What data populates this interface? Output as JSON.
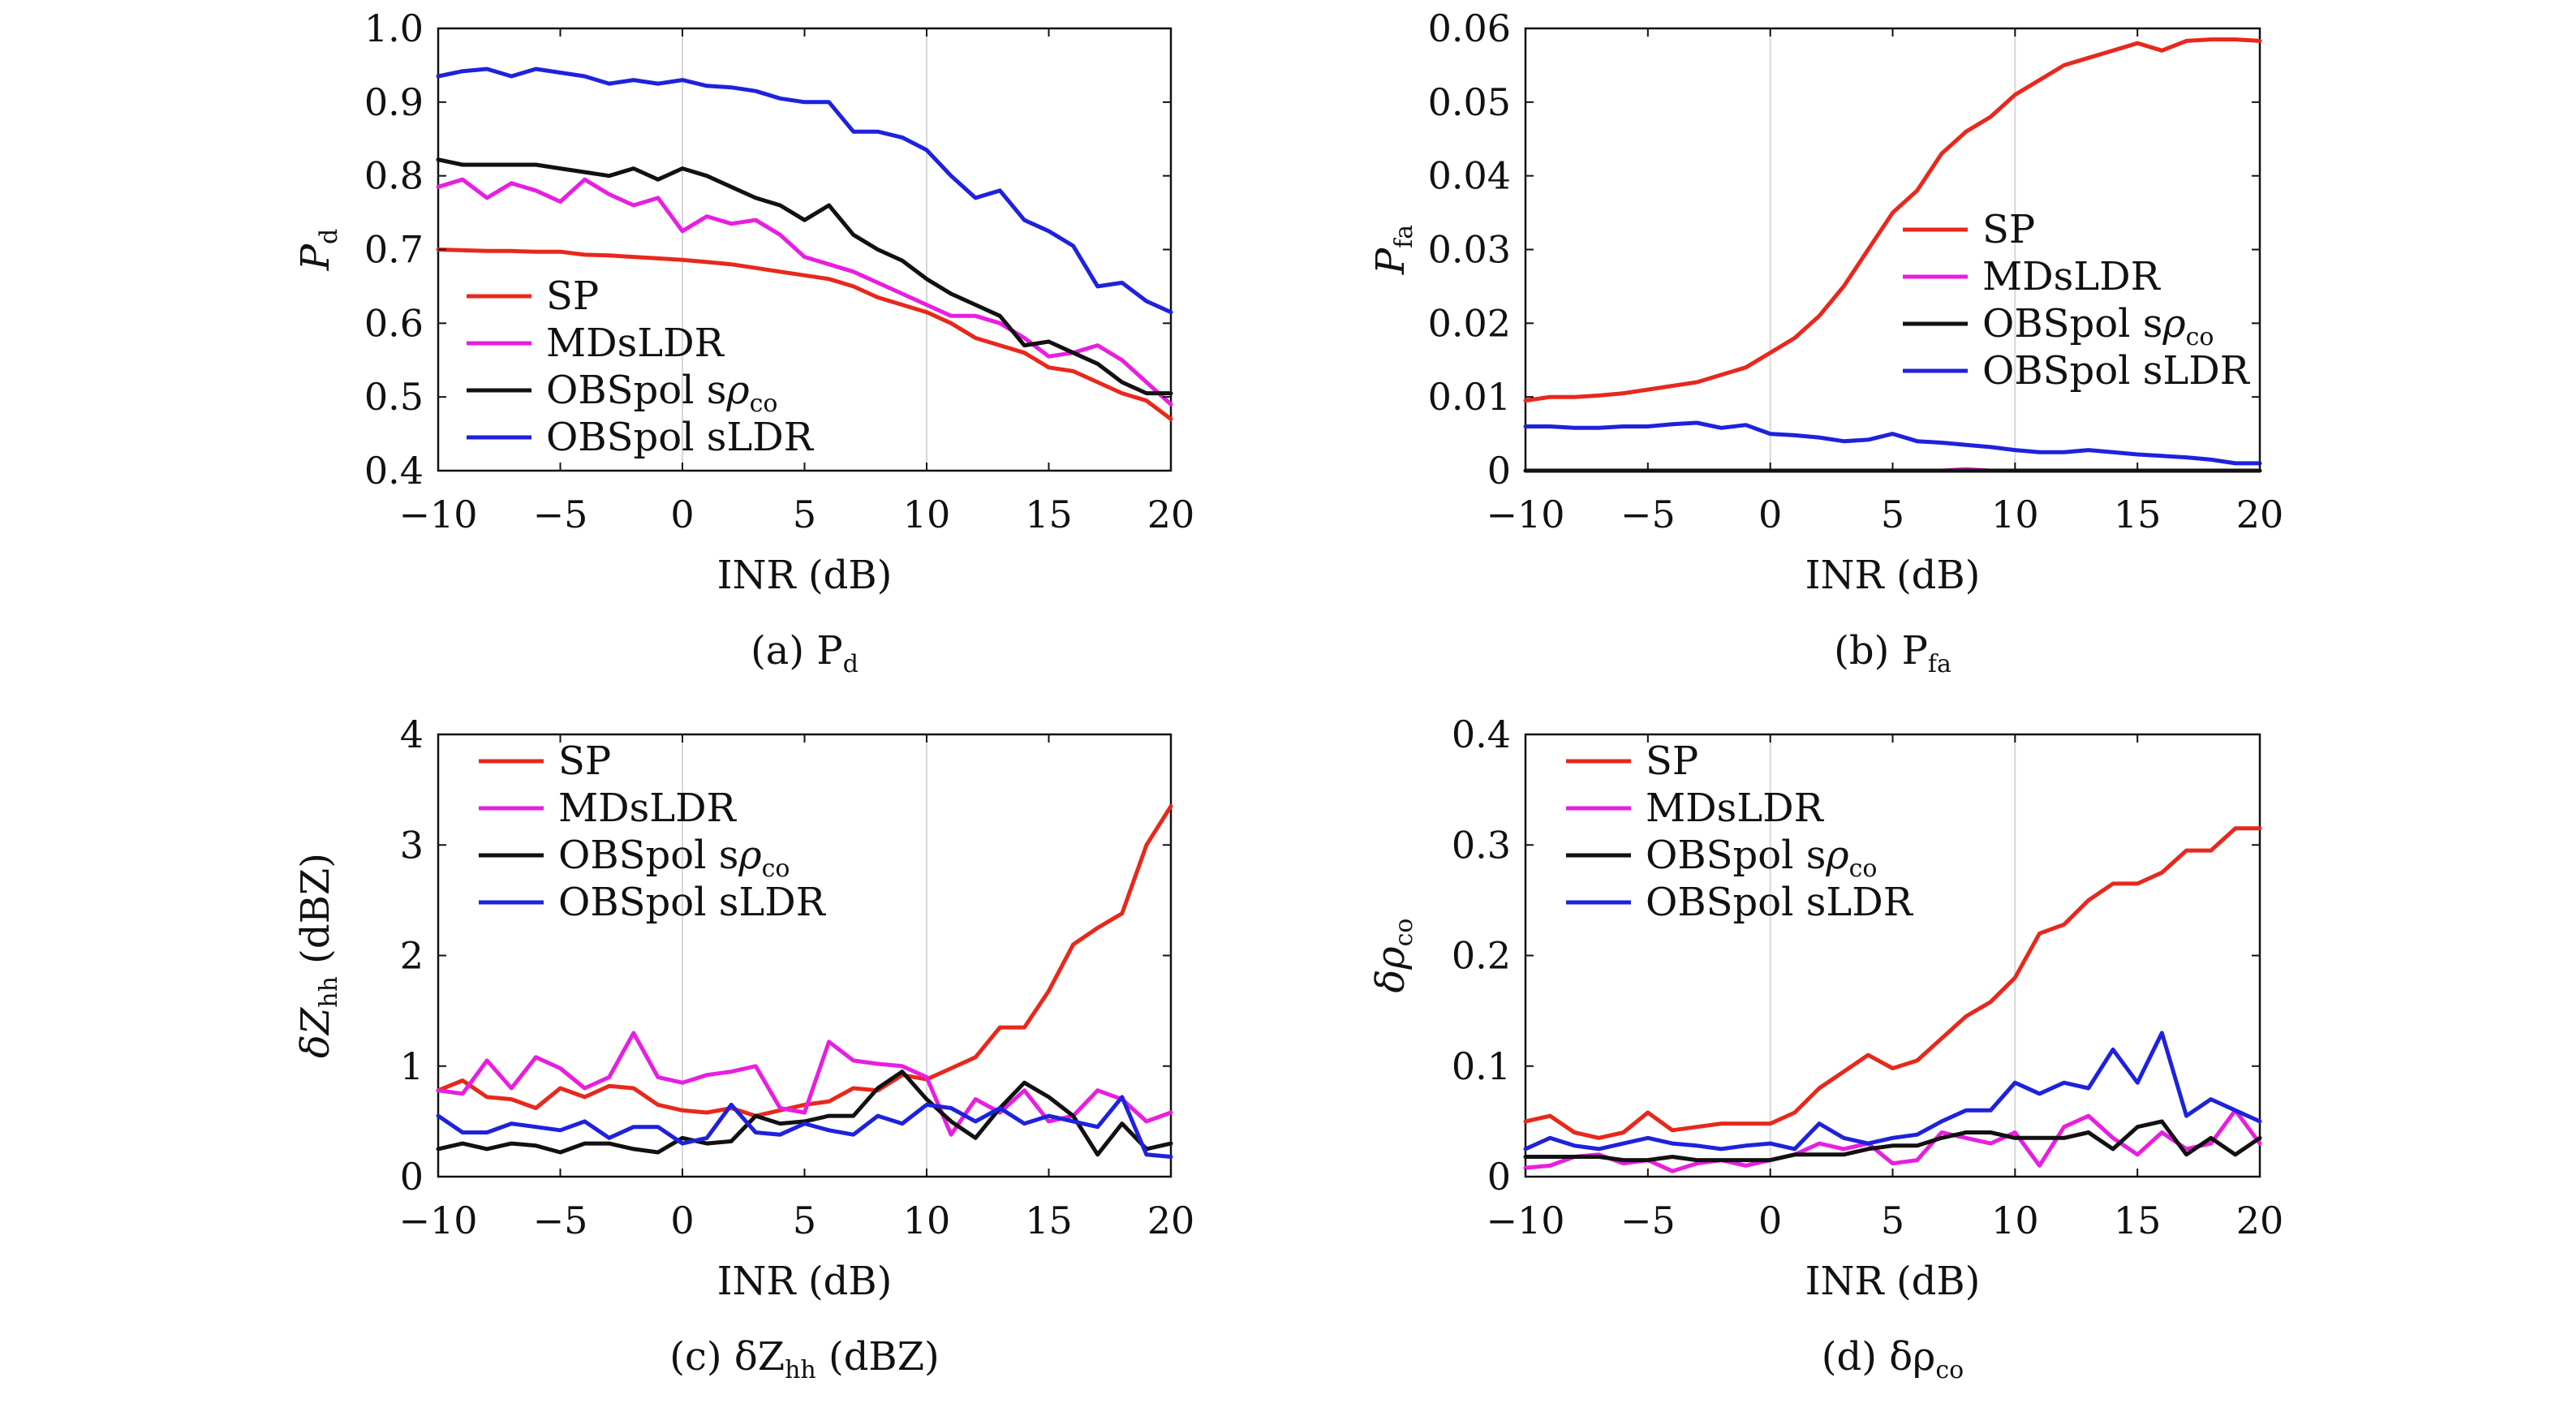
{
  "chart_data": [
    {
      "id": "a",
      "type": "line",
      "caption": "(a) P_d",
      "caption_main": "(a) P",
      "caption_sub": "d",
      "xlabel": "INR (dB)",
      "ylabel": "P_d",
      "ylabel_main": "P",
      "ylabel_sub": "d",
      "xlim": [
        -10,
        20
      ],
      "ylim": [
        0.4,
        1.0
      ],
      "xticks": [
        -10,
        -5,
        0,
        5,
        10,
        15,
        20
      ],
      "xtick_labels": [
        "−10",
        "−5",
        "0",
        "5",
        "10",
        "15",
        "20"
      ],
      "yticks": [
        0.4,
        0.5,
        0.6,
        0.7,
        0.8,
        0.9,
        1.0
      ],
      "ytick_labels": [
        "0.4",
        "0.5",
        "0.6",
        "0.7",
        "0.8",
        "0.9",
        "1.0"
      ],
      "grid": "vertical at x=0 and x=10",
      "legend": {
        "position": "bottom-left"
      },
      "x": [
        -10,
        -9,
        -8,
        -7,
        -6,
        -5,
        -4,
        -3,
        -2,
        -1,
        0,
        1,
        2,
        3,
        4,
        5,
        6,
        7,
        8,
        9,
        10,
        11,
        12,
        13,
        14,
        15,
        16,
        17,
        18,
        19,
        20
      ],
      "series": [
        {
          "name": "SP",
          "color": "#e8281c",
          "values": [
            0.7,
            0.699,
            0.698,
            0.698,
            0.697,
            0.697,
            0.693,
            0.692,
            0.69,
            0.688,
            0.686,
            0.683,
            0.68,
            0.675,
            0.67,
            0.665,
            0.66,
            0.65,
            0.635,
            0.625,
            0.615,
            0.6,
            0.58,
            0.57,
            0.56,
            0.54,
            0.535,
            0.52,
            0.505,
            0.495,
            0.47
          ]
        },
        {
          "name": "MDsLDR",
          "color": "#e81ee0",
          "values": [
            0.785,
            0.795,
            0.77,
            0.79,
            0.78,
            0.765,
            0.795,
            0.775,
            0.76,
            0.77,
            0.725,
            0.745,
            0.735,
            0.74,
            0.72,
            0.69,
            0.68,
            0.67,
            0.655,
            0.64,
            0.625,
            0.61,
            0.61,
            0.6,
            0.58,
            0.555,
            0.56,
            0.57,
            0.55,
            0.52,
            0.49
          ]
        },
        {
          "name": "OBSpol sρ_co",
          "name_main": "OBSpol s",
          "name_sym": "ρ",
          "name_sub": "co",
          "color": "#111111",
          "values": [
            0.822,
            0.815,
            0.815,
            0.815,
            0.815,
            0.81,
            0.805,
            0.8,
            0.81,
            0.795,
            0.81,
            0.8,
            0.785,
            0.77,
            0.76,
            0.74,
            0.76,
            0.72,
            0.7,
            0.685,
            0.66,
            0.64,
            0.625,
            0.61,
            0.57,
            0.575,
            0.56,
            0.545,
            0.52,
            0.505,
            0.505
          ]
        },
        {
          "name": "OBSpol sLDR",
          "color": "#1e22dc",
          "values": [
            0.935,
            0.942,
            0.945,
            0.935,
            0.945,
            0.94,
            0.935,
            0.925,
            0.93,
            0.925,
            0.93,
            0.922,
            0.92,
            0.915,
            0.905,
            0.9,
            0.9,
            0.86,
            0.86,
            0.852,
            0.835,
            0.8,
            0.77,
            0.78,
            0.74,
            0.725,
            0.705,
            0.65,
            0.655,
            0.63,
            0.615
          ]
        }
      ]
    },
    {
      "id": "b",
      "type": "line",
      "caption": "(b) P_fa",
      "caption_main": "(b) P",
      "caption_sub": "fa",
      "xlabel": "INR (dB)",
      "ylabel": "P_fa",
      "ylabel_main": "P",
      "ylabel_sub": "fa",
      "xlim": [
        -10,
        20
      ],
      "ylim": [
        0,
        0.06
      ],
      "xticks": [
        -10,
        -5,
        0,
        5,
        10,
        15,
        20
      ],
      "xtick_labels": [
        "−10",
        "−5",
        "0",
        "5",
        "10",
        "15",
        "20"
      ],
      "yticks": [
        0,
        0.01,
        0.02,
        0.03,
        0.04,
        0.05,
        0.06
      ],
      "ytick_labels": [
        "0",
        "0.01",
        "0.02",
        "0.03",
        "0.04",
        "0.05",
        "0.06"
      ],
      "grid": "vertical at x=0 and x=10",
      "legend": {
        "position": "center-right"
      },
      "x": [
        -10,
        -9,
        -8,
        -7,
        -6,
        -5,
        -4,
        -3,
        -2,
        -1,
        0,
        1,
        2,
        3,
        4,
        5,
        6,
        7,
        8,
        9,
        10,
        11,
        12,
        13,
        14,
        15,
        16,
        17,
        18,
        19,
        20
      ],
      "series": [
        {
          "name": "SP",
          "color": "#e8281c",
          "values": [
            0.0095,
            0.01,
            0.01,
            0.0102,
            0.0105,
            0.011,
            0.0115,
            0.012,
            0.013,
            0.014,
            0.016,
            0.018,
            0.021,
            0.025,
            0.03,
            0.035,
            0.038,
            0.043,
            0.046,
            0.048,
            0.051,
            0.053,
            0.055,
            0.056,
            0.057,
            0.058,
            0.057,
            0.0583,
            0.0585,
            0.0585,
            0.0583
          ]
        },
        {
          "name": "MDsLDR",
          "color": "#e81ee0",
          "values": [
            0,
            0,
            0,
            0,
            0,
            0,
            0,
            0,
            0,
            0,
            0,
            0,
            0,
            0,
            0,
            0,
            0,
            0,
            0.0002,
            0,
            0,
            0,
            0,
            0,
            0,
            0,
            0,
            0,
            0,
            0,
            0
          ]
        },
        {
          "name": "OBSpol sρ_co",
          "name_main": "OBSpol s",
          "name_sym": "ρ",
          "name_sub": "co",
          "color": "#111111",
          "values": [
            0,
            0,
            0,
            0,
            0,
            0,
            0,
            0,
            0,
            0,
            0,
            0,
            0,
            0,
            0,
            0,
            0,
            0,
            0,
            0,
            0,
            0,
            0,
            0,
            0,
            0,
            0,
            0,
            0,
            0,
            0
          ]
        },
        {
          "name": "OBSpol sLDR",
          "color": "#1e22dc",
          "values": [
            0.006,
            0.006,
            0.0058,
            0.0058,
            0.006,
            0.006,
            0.0063,
            0.0065,
            0.0058,
            0.0062,
            0.005,
            0.0048,
            0.0045,
            0.004,
            0.0042,
            0.005,
            0.004,
            0.0038,
            0.0035,
            0.0032,
            0.0028,
            0.0025,
            0.0025,
            0.0028,
            0.0025,
            0.0022,
            0.002,
            0.0018,
            0.0015,
            0.001,
            0.001
          ]
        }
      ]
    },
    {
      "id": "c",
      "type": "line",
      "caption": "(c) δZ_hh (dBZ)",
      "caption_main": "(c) δZ",
      "caption_sub": "hh",
      "caption_tail": " (dBZ)",
      "xlabel": "INR (dB)",
      "ylabel": "δZ_hh (dBZ)",
      "ylabel_main": "δZ",
      "ylabel_sub": "hh",
      "ylabel_tail": " (dBZ)",
      "xlim": [
        -10,
        20
      ],
      "ylim": [
        0,
        4
      ],
      "xticks": [
        -10,
        -5,
        0,
        5,
        10,
        15,
        20
      ],
      "xtick_labels": [
        "−10",
        "−5",
        "0",
        "5",
        "10",
        "15",
        "20"
      ],
      "yticks": [
        0,
        1,
        2,
        3,
        4
      ],
      "ytick_labels": [
        "0",
        "1",
        "2",
        "3",
        "4"
      ],
      "grid": "vertical at x=0 and x=10",
      "legend": {
        "position": "top-left"
      },
      "x": [
        -10,
        -9,
        -8,
        -7,
        -6,
        -5,
        -4,
        -3,
        -2,
        -1,
        0,
        1,
        2,
        3,
        4,
        5,
        6,
        7,
        8,
        9,
        10,
        11,
        12,
        13,
        14,
        15,
        16,
        17,
        18,
        19,
        20
      ],
      "series": [
        {
          "name": "SP",
          "color": "#e8281c",
          "values": [
            0.78,
            0.87,
            0.72,
            0.7,
            0.62,
            0.8,
            0.72,
            0.82,
            0.8,
            0.65,
            0.6,
            0.58,
            0.62,
            0.55,
            0.6,
            0.65,
            0.68,
            0.8,
            0.78,
            0.92,
            0.88,
            0.98,
            1.08,
            1.35,
            1.35,
            1.68,
            2.1,
            2.25,
            2.38,
            3.0,
            3.35
          ]
        },
        {
          "name": "MDsLDR",
          "color": "#e81ee0",
          "values": [
            0.78,
            0.75,
            1.05,
            0.8,
            1.08,
            0.98,
            0.8,
            0.9,
            1.3,
            0.9,
            0.85,
            0.92,
            0.95,
            1.0,
            0.62,
            0.58,
            1.22,
            1.05,
            1.02,
            1.0,
            0.9,
            0.38,
            0.7,
            0.58,
            0.78,
            0.5,
            0.55,
            0.78,
            0.7,
            0.5,
            0.58
          ]
        },
        {
          "name": "OBSpol sρ_co",
          "name_main": "OBSpol s",
          "name_sym": "ρ",
          "name_sub": "co",
          "color": "#111111",
          "values": [
            0.25,
            0.3,
            0.25,
            0.3,
            0.28,
            0.22,
            0.3,
            0.3,
            0.25,
            0.22,
            0.35,
            0.3,
            0.32,
            0.55,
            0.48,
            0.5,
            0.55,
            0.55,
            0.8,
            0.95,
            0.7,
            0.5,
            0.35,
            0.62,
            0.85,
            0.72,
            0.55,
            0.2,
            0.48,
            0.25,
            0.3
          ]
        },
        {
          "name": "OBSpol sLDR",
          "color": "#1e22dc",
          "values": [
            0.55,
            0.4,
            0.4,
            0.48,
            0.45,
            0.42,
            0.5,
            0.35,
            0.45,
            0.45,
            0.3,
            0.35,
            0.65,
            0.4,
            0.38,
            0.48,
            0.42,
            0.38,
            0.55,
            0.48,
            0.65,
            0.62,
            0.5,
            0.62,
            0.48,
            0.55,
            0.5,
            0.45,
            0.72,
            0.2,
            0.18
          ]
        }
      ]
    },
    {
      "id": "d",
      "type": "line",
      "caption": "(d) δρ_co",
      "caption_main": "(d) δρ",
      "caption_sub": "co",
      "xlabel": "INR (dB)",
      "ylabel": "δρ_co",
      "ylabel_main": "δρ",
      "ylabel_sub": "co",
      "xlim": [
        -10,
        20
      ],
      "ylim": [
        0,
        0.4
      ],
      "xticks": [
        -10,
        -5,
        0,
        5,
        10,
        15,
        20
      ],
      "xtick_labels": [
        "−10",
        "−5",
        "0",
        "5",
        "10",
        "15",
        "20"
      ],
      "yticks": [
        0,
        0.1,
        0.2,
        0.3,
        0.4
      ],
      "ytick_labels": [
        "0",
        "0.1",
        "0.2",
        "0.3",
        "0.4"
      ],
      "grid": "vertical at x=0 and x=10",
      "legend": {
        "position": "top-left"
      },
      "x": [
        -10,
        -9,
        -8,
        -7,
        -6,
        -5,
        -4,
        -3,
        -2,
        -1,
        0,
        1,
        2,
        3,
        4,
        5,
        6,
        7,
        8,
        9,
        10,
        11,
        12,
        13,
        14,
        15,
        16,
        17,
        18,
        19,
        20
      ],
      "series": [
        {
          "name": "SP",
          "color": "#e8281c",
          "values": [
            0.05,
            0.055,
            0.04,
            0.035,
            0.04,
            0.058,
            0.042,
            0.045,
            0.048,
            0.048,
            0.048,
            0.058,
            0.08,
            0.095,
            0.11,
            0.098,
            0.105,
            0.125,
            0.145,
            0.158,
            0.18,
            0.22,
            0.228,
            0.25,
            0.265,
            0.265,
            0.275,
            0.295,
            0.295,
            0.315,
            0.315
          ]
        },
        {
          "name": "MDsLDR",
          "color": "#e81ee0",
          "values": [
            0.008,
            0.01,
            0.018,
            0.02,
            0.012,
            0.015,
            0.005,
            0.012,
            0.015,
            0.01,
            0.015,
            0.02,
            0.03,
            0.025,
            0.03,
            0.012,
            0.015,
            0.04,
            0.035,
            0.03,
            0.04,
            0.01,
            0.045,
            0.055,
            0.035,
            0.02,
            0.04,
            0.025,
            0.03,
            0.06,
            0.03
          ]
        },
        {
          "name": "OBSpol sρ_co",
          "name_main": "OBSpol s",
          "name_sym": "ρ",
          "name_sub": "co",
          "color": "#111111",
          "values": [
            0.018,
            0.018,
            0.018,
            0.018,
            0.015,
            0.015,
            0.018,
            0.015,
            0.015,
            0.015,
            0.015,
            0.02,
            0.02,
            0.02,
            0.025,
            0.028,
            0.028,
            0.035,
            0.04,
            0.04,
            0.035,
            0.035,
            0.035,
            0.04,
            0.025,
            0.045,
            0.05,
            0.02,
            0.035,
            0.02,
            0.035
          ]
        },
        {
          "name": "OBSpol sLDR",
          "color": "#1e22dc",
          "values": [
            0.025,
            0.035,
            0.028,
            0.025,
            0.03,
            0.035,
            0.03,
            0.028,
            0.025,
            0.028,
            0.03,
            0.025,
            0.048,
            0.035,
            0.03,
            0.035,
            0.038,
            0.05,
            0.06,
            0.06,
            0.085,
            0.075,
            0.085,
            0.08,
            0.115,
            0.085,
            0.13,
            0.055,
            0.07,
            0.06,
            0.05
          ]
        }
      ]
    }
  ]
}
